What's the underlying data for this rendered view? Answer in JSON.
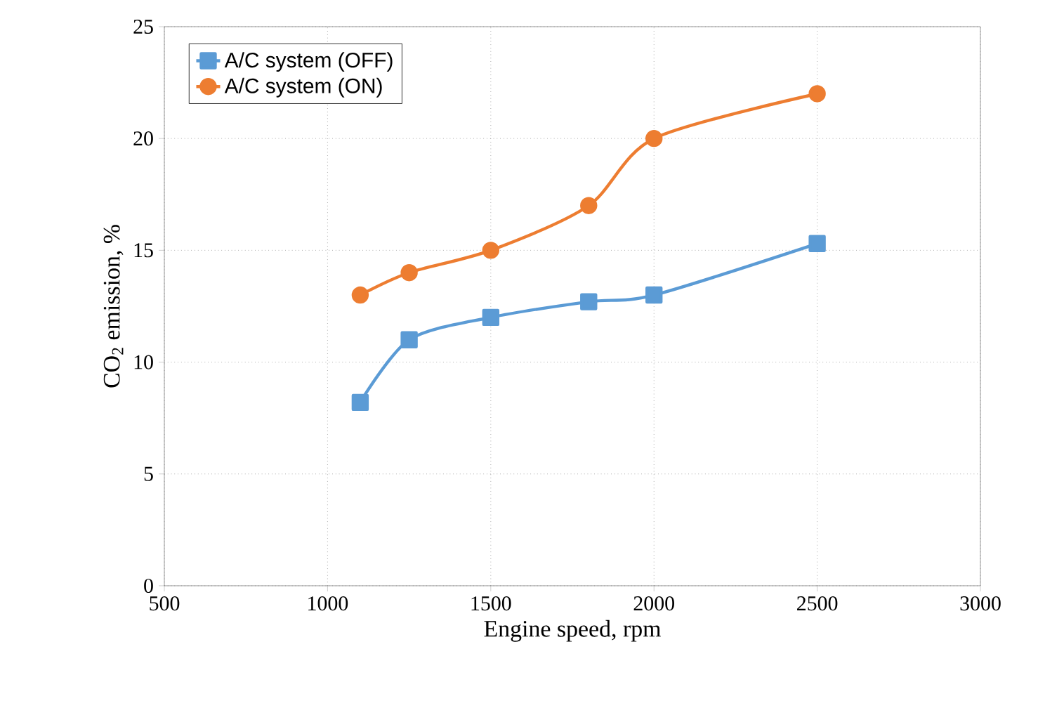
{
  "chart_data": {
    "type": "line",
    "xlabel": "Engine speed, rpm",
    "ylabel": "CO$_{2}$ emission, %",
    "x": [
      1100,
      1250,
      1500,
      1800,
      2000,
      2500
    ],
    "xlim": [
      500,
      3000
    ],
    "xticks": [
      500,
      1000,
      1500,
      2000,
      2500,
      3000
    ],
    "ylim": [
      0,
      25
    ],
    "yticks": [
      0,
      5,
      10,
      15,
      20,
      25
    ],
    "grid": true,
    "legend": "top left",
    "line_style": "solid",
    "series": [
      {
        "name": "A/C system (OFF)",
        "color": "#5b9bd5",
        "marker": "square",
        "values": [
          8.2,
          11,
          12,
          12.7,
          13,
          15.3
        ]
      },
      {
        "name": "A/C system (ON)",
        "color": "#ed7d31",
        "marker": "circle",
        "values": [
          13,
          14,
          15,
          17,
          20,
          22
        ]
      }
    ]
  }
}
